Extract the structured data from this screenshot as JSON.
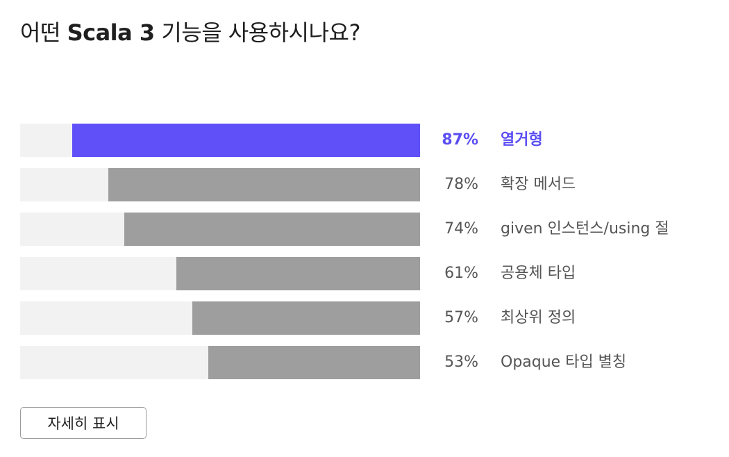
{
  "title": {
    "prefix": "어떤 ",
    "bold": "Scala 3",
    "suffix": " 기능을 사용하시나요?"
  },
  "colors": {
    "highlight": "#6050f8",
    "bar": "#9e9e9e",
    "track": "#f2f2f2"
  },
  "chart_data": {
    "type": "bar",
    "orientation": "horizontal",
    "categories": [
      "열거형",
      "확장 메서드",
      "given 인스턴스/using 절",
      "공용체 타입",
      "최상위 정의",
      "Opaque 타입 별칭"
    ],
    "values": [
      87,
      78,
      74,
      61,
      57,
      53
    ],
    "value_labels": [
      "87%",
      "78%",
      "74%",
      "61%",
      "57%",
      "53%"
    ],
    "highlighted_index": 0,
    "xlim": [
      0,
      100
    ],
    "grid": false
  },
  "button": {
    "label": "자세히 표시"
  }
}
